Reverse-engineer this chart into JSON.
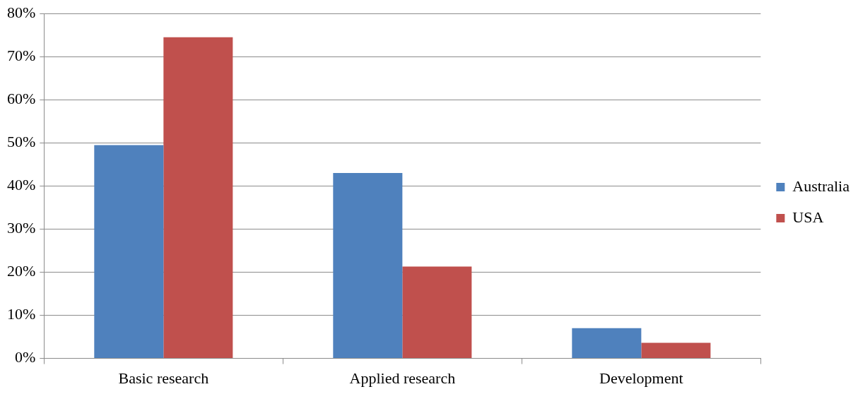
{
  "chart_data": {
    "type": "bar",
    "categories": [
      "Basic research",
      "Applied research",
      "Development"
    ],
    "series": [
      {
        "name": "Australia",
        "color": "#4f81bd",
        "values": [
          49.5,
          43,
          7
        ]
      },
      {
        "name": "USA",
        "color": "#c0504d",
        "values": [
          74.5,
          21.3,
          3.6
        ]
      }
    ],
    "ylim": [
      0,
      80
    ],
    "yticks": [
      {
        "value": 0,
        "label": "0%"
      },
      {
        "value": 10,
        "label": "10%"
      },
      {
        "value": 20,
        "label": "20%"
      },
      {
        "value": 30,
        "label": "30%"
      },
      {
        "value": 40,
        "label": "40%"
      },
      {
        "value": 50,
        "label": "50%"
      },
      {
        "value": 60,
        "label": "60%"
      },
      {
        "value": 70,
        "label": "70%"
      },
      {
        "value": 80,
        "label": "80%"
      }
    ],
    "grid": "y",
    "legend": "right"
  }
}
